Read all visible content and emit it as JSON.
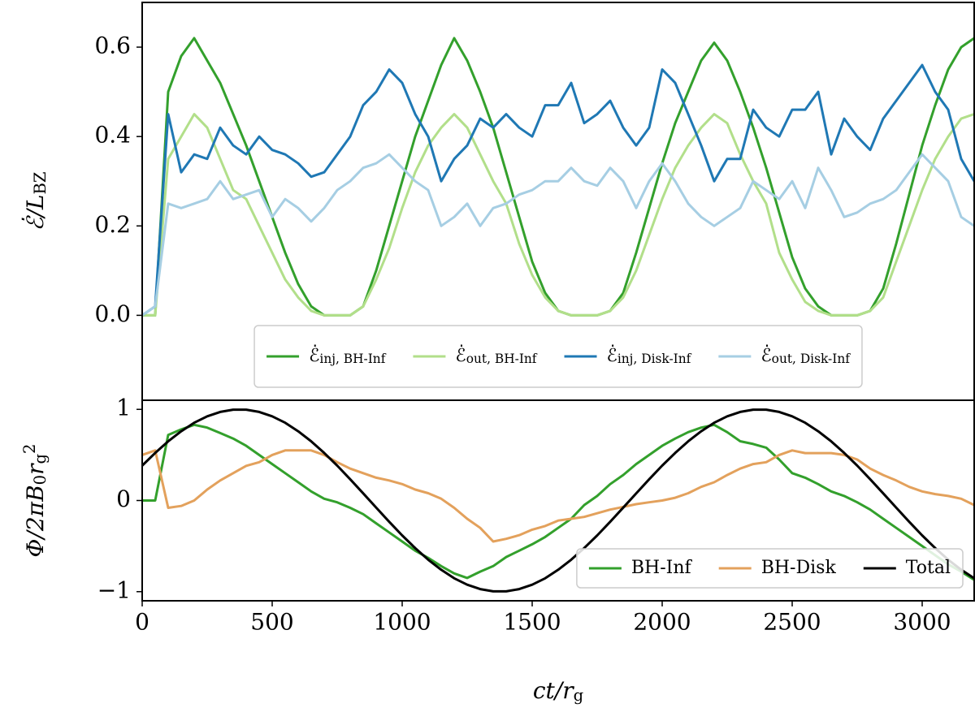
{
  "chart_data": [
    {
      "type": "line",
      "ylabel": "ℰ̇/LBZ",
      "legend": "lower center",
      "xlim": [
        0,
        3200
      ],
      "ylim": [
        -0.19,
        0.7
      ],
      "yticks": [
        {
          "value": 0,
          "label": "0.0"
        },
        0.2,
        0.4,
        0.6
      ],
      "x": [
        0,
        50,
        100,
        150,
        200,
        250,
        300,
        350,
        400,
        450,
        500,
        550,
        600,
        650,
        700,
        750,
        800,
        850,
        900,
        950,
        1000,
        1050,
        1100,
        1150,
        1200,
        1250,
        1300,
        1350,
        1400,
        1450,
        1500,
        1550,
        1600,
        1650,
        1700,
        1750,
        1800,
        1850,
        1900,
        1950,
        2000,
        2050,
        2100,
        2150,
        2200,
        2250,
        2300,
        2350,
        2400,
        2450,
        2500,
        2550,
        2600,
        2650,
        2700,
        2750,
        2800,
        2850,
        2900,
        2950,
        3000,
        3050,
        3100,
        3150,
        3200
      ],
      "series": [
        {
          "name": "ℰ̇inj, BH-Inf",
          "color": "#33a02c",
          "values": [
            0,
            0,
            0.5,
            0.58,
            0.62,
            0.57,
            0.52,
            0.45,
            0.38,
            0.3,
            0.22,
            0.14,
            0.07,
            0.02,
            0,
            0,
            0,
            0.02,
            0.1,
            0.2,
            0.3,
            0.4,
            0.48,
            0.56,
            0.62,
            0.57,
            0.5,
            0.42,
            0.32,
            0.22,
            0.12,
            0.05,
            0.01,
            0,
            0,
            0,
            0.01,
            0.05,
            0.14,
            0.24,
            0.34,
            0.43,
            0.5,
            0.57,
            0.61,
            0.57,
            0.5,
            0.42,
            0.33,
            0.23,
            0.13,
            0.06,
            0.02,
            0,
            0,
            0,
            0.01,
            0.06,
            0.16,
            0.27,
            0.38,
            0.47,
            0.55,
            0.6,
            0.62
          ]
        },
        {
          "name": "ℰ̇out, BH-Inf",
          "color": "#b2df8a",
          "values": [
            0,
            0,
            0.35,
            0.4,
            0.45,
            0.42,
            0.35,
            0.28,
            0.26,
            0.2,
            0.14,
            0.08,
            0.04,
            0.01,
            0,
            0,
            0,
            0.02,
            0.08,
            0.15,
            0.24,
            0.32,
            0.38,
            0.42,
            0.45,
            0.42,
            0.36,
            0.3,
            0.25,
            0.16,
            0.09,
            0.04,
            0.01,
            0,
            0,
            0,
            0.01,
            0.04,
            0.1,
            0.18,
            0.26,
            0.33,
            0.38,
            0.42,
            0.45,
            0.43,
            0.36,
            0.3,
            0.25,
            0.14,
            0.08,
            0.03,
            0.01,
            0,
            0,
            0,
            0.01,
            0.04,
            0.12,
            0.2,
            0.28,
            0.35,
            0.4,
            0.44,
            0.45
          ]
        },
        {
          "name": "ℰ̇inj, Disk-Inf",
          "color": "#1f78b4",
          "values": [
            0,
            0.02,
            0.45,
            0.32,
            0.36,
            0.35,
            0.42,
            0.38,
            0.36,
            0.4,
            0.37,
            0.36,
            0.34,
            0.31,
            0.32,
            0.36,
            0.4,
            0.47,
            0.5,
            0.55,
            0.52,
            0.45,
            0.4,
            0.3,
            0.35,
            0.38,
            0.44,
            0.42,
            0.45,
            0.42,
            0.4,
            0.47,
            0.47,
            0.52,
            0.43,
            0.45,
            0.48,
            0.42,
            0.38,
            0.42,
            0.55,
            0.52,
            0.45,
            0.38,
            0.3,
            0.35,
            0.35,
            0.46,
            0.42,
            0.4,
            0.46,
            0.46,
            0.5,
            0.36,
            0.44,
            0.4,
            0.37,
            0.44,
            0.48,
            0.52,
            0.56,
            0.5,
            0.46,
            0.35,
            0.3
          ]
        },
        {
          "name": "ℰ̇out, Disk-Inf",
          "color": "#a6cee3",
          "values": [
            0,
            0.02,
            0.25,
            0.24,
            0.25,
            0.26,
            0.3,
            0.26,
            0.27,
            0.28,
            0.22,
            0.26,
            0.24,
            0.21,
            0.24,
            0.28,
            0.3,
            0.33,
            0.34,
            0.36,
            0.33,
            0.3,
            0.28,
            0.2,
            0.22,
            0.25,
            0.2,
            0.24,
            0.25,
            0.27,
            0.28,
            0.3,
            0.3,
            0.33,
            0.3,
            0.29,
            0.33,
            0.3,
            0.24,
            0.3,
            0.34,
            0.3,
            0.25,
            0.22,
            0.2,
            0.22,
            0.24,
            0.3,
            0.28,
            0.26,
            0.3,
            0.24,
            0.33,
            0.28,
            0.22,
            0.23,
            0.25,
            0.26,
            0.28,
            0.32,
            0.36,
            0.33,
            0.3,
            0.22,
            0.2
          ]
        }
      ]
    },
    {
      "type": "line",
      "ylabel": "Φ/2πB0rg2",
      "xlabel": "ct/rg",
      "legend": "lower right",
      "xlim": [
        0,
        3200
      ],
      "ylim": [
        -1.1,
        1.1
      ],
      "xticks": [
        0,
        500,
        1000,
        1500,
        2000,
        2500,
        3000
      ],
      "yticks": [
        {
          "value": -1,
          "label": "−1"
        },
        0,
        1
      ],
      "x": [
        0,
        50,
        100,
        150,
        200,
        250,
        300,
        350,
        400,
        450,
        500,
        550,
        600,
        650,
        700,
        750,
        800,
        850,
        900,
        950,
        1000,
        1050,
        1100,
        1150,
        1200,
        1250,
        1300,
        1350,
        1400,
        1450,
        1500,
        1550,
        1600,
        1650,
        1700,
        1750,
        1800,
        1850,
        1900,
        1950,
        2000,
        2050,
        2100,
        2150,
        2200,
        2250,
        2300,
        2350,
        2400,
        2450,
        2500,
        2550,
        2600,
        2650,
        2700,
        2750,
        2800,
        2850,
        2900,
        2950,
        3000,
        3050,
        3100,
        3150,
        3200
      ],
      "series": [
        {
          "name": "BH-Inf",
          "color": "#33a02c",
          "values": [
            0,
            0,
            0.72,
            0.78,
            0.83,
            0.8,
            0.74,
            0.68,
            0.6,
            0.5,
            0.4,
            0.3,
            0.2,
            0.1,
            0.02,
            -0.02,
            -0.08,
            -0.15,
            -0.25,
            -0.35,
            -0.45,
            -0.55,
            -0.63,
            -0.72,
            -0.8,
            -0.85,
            -0.78,
            -0.72,
            -0.62,
            -0.55,
            -0.48,
            -0.4,
            -0.3,
            -0.2,
            -0.05,
            0.05,
            0.18,
            0.28,
            0.4,
            0.5,
            0.6,
            0.68,
            0.75,
            0.8,
            0.83,
            0.75,
            0.65,
            0.62,
            0.58,
            0.45,
            0.3,
            0.25,
            0.18,
            0.1,
            0.05,
            -0.02,
            -0.1,
            -0.2,
            -0.3,
            -0.4,
            -0.5,
            -0.6,
            -0.7,
            -0.78,
            -0.87
          ]
        },
        {
          "name": "BH-Disk",
          "color": "#e3a15c",
          "values": [
            0.5,
            0.55,
            -0.08,
            -0.06,
            0,
            0.12,
            0.22,
            0.3,
            0.38,
            0.42,
            0.5,
            0.55,
            0.55,
            0.55,
            0.5,
            0.42,
            0.35,
            0.3,
            0.25,
            0.22,
            0.18,
            0.12,
            0.08,
            0.02,
            -0.08,
            -0.2,
            -0.3,
            -0.45,
            -0.42,
            -0.38,
            -0.32,
            -0.28,
            -0.22,
            -0.2,
            -0.18,
            -0.14,
            -0.1,
            -0.07,
            -0.04,
            -0.02,
            0,
            0.03,
            0.08,
            0.15,
            0.2,
            0.28,
            0.35,
            0.4,
            0.42,
            0.5,
            0.55,
            0.52,
            0.52,
            0.52,
            0.5,
            0.45,
            0.35,
            0.28,
            0.22,
            0.15,
            0.1,
            0.07,
            0.05,
            0.02,
            -0.05
          ]
        },
        {
          "name": "Total",
          "color": "#000000",
          "values": [
            0.383,
            0.522,
            0.649,
            0.76,
            0.853,
            0.924,
            0.972,
            0.997,
            0.997,
            0.972,
            0.924,
            0.853,
            0.76,
            0.649,
            0.522,
            0.383,
            0.233,
            0.078,
            -0.078,
            -0.233,
            -0.383,
            -0.522,
            -0.649,
            -0.76,
            -0.853,
            -0.924,
            -0.972,
            -0.997,
            -0.997,
            -0.972,
            -0.924,
            -0.853,
            -0.76,
            -0.649,
            -0.522,
            -0.383,
            -0.233,
            -0.078,
            0.078,
            0.233,
            0.383,
            0.522,
            0.649,
            0.76,
            0.853,
            0.924,
            0.972,
            0.997,
            0.997,
            0.972,
            0.924,
            0.853,
            0.76,
            0.649,
            0.522,
            0.383,
            0.233,
            0.078,
            -0.078,
            -0.233,
            -0.383,
            -0.522,
            -0.649,
            -0.76,
            -0.853
          ]
        }
      ]
    }
  ]
}
